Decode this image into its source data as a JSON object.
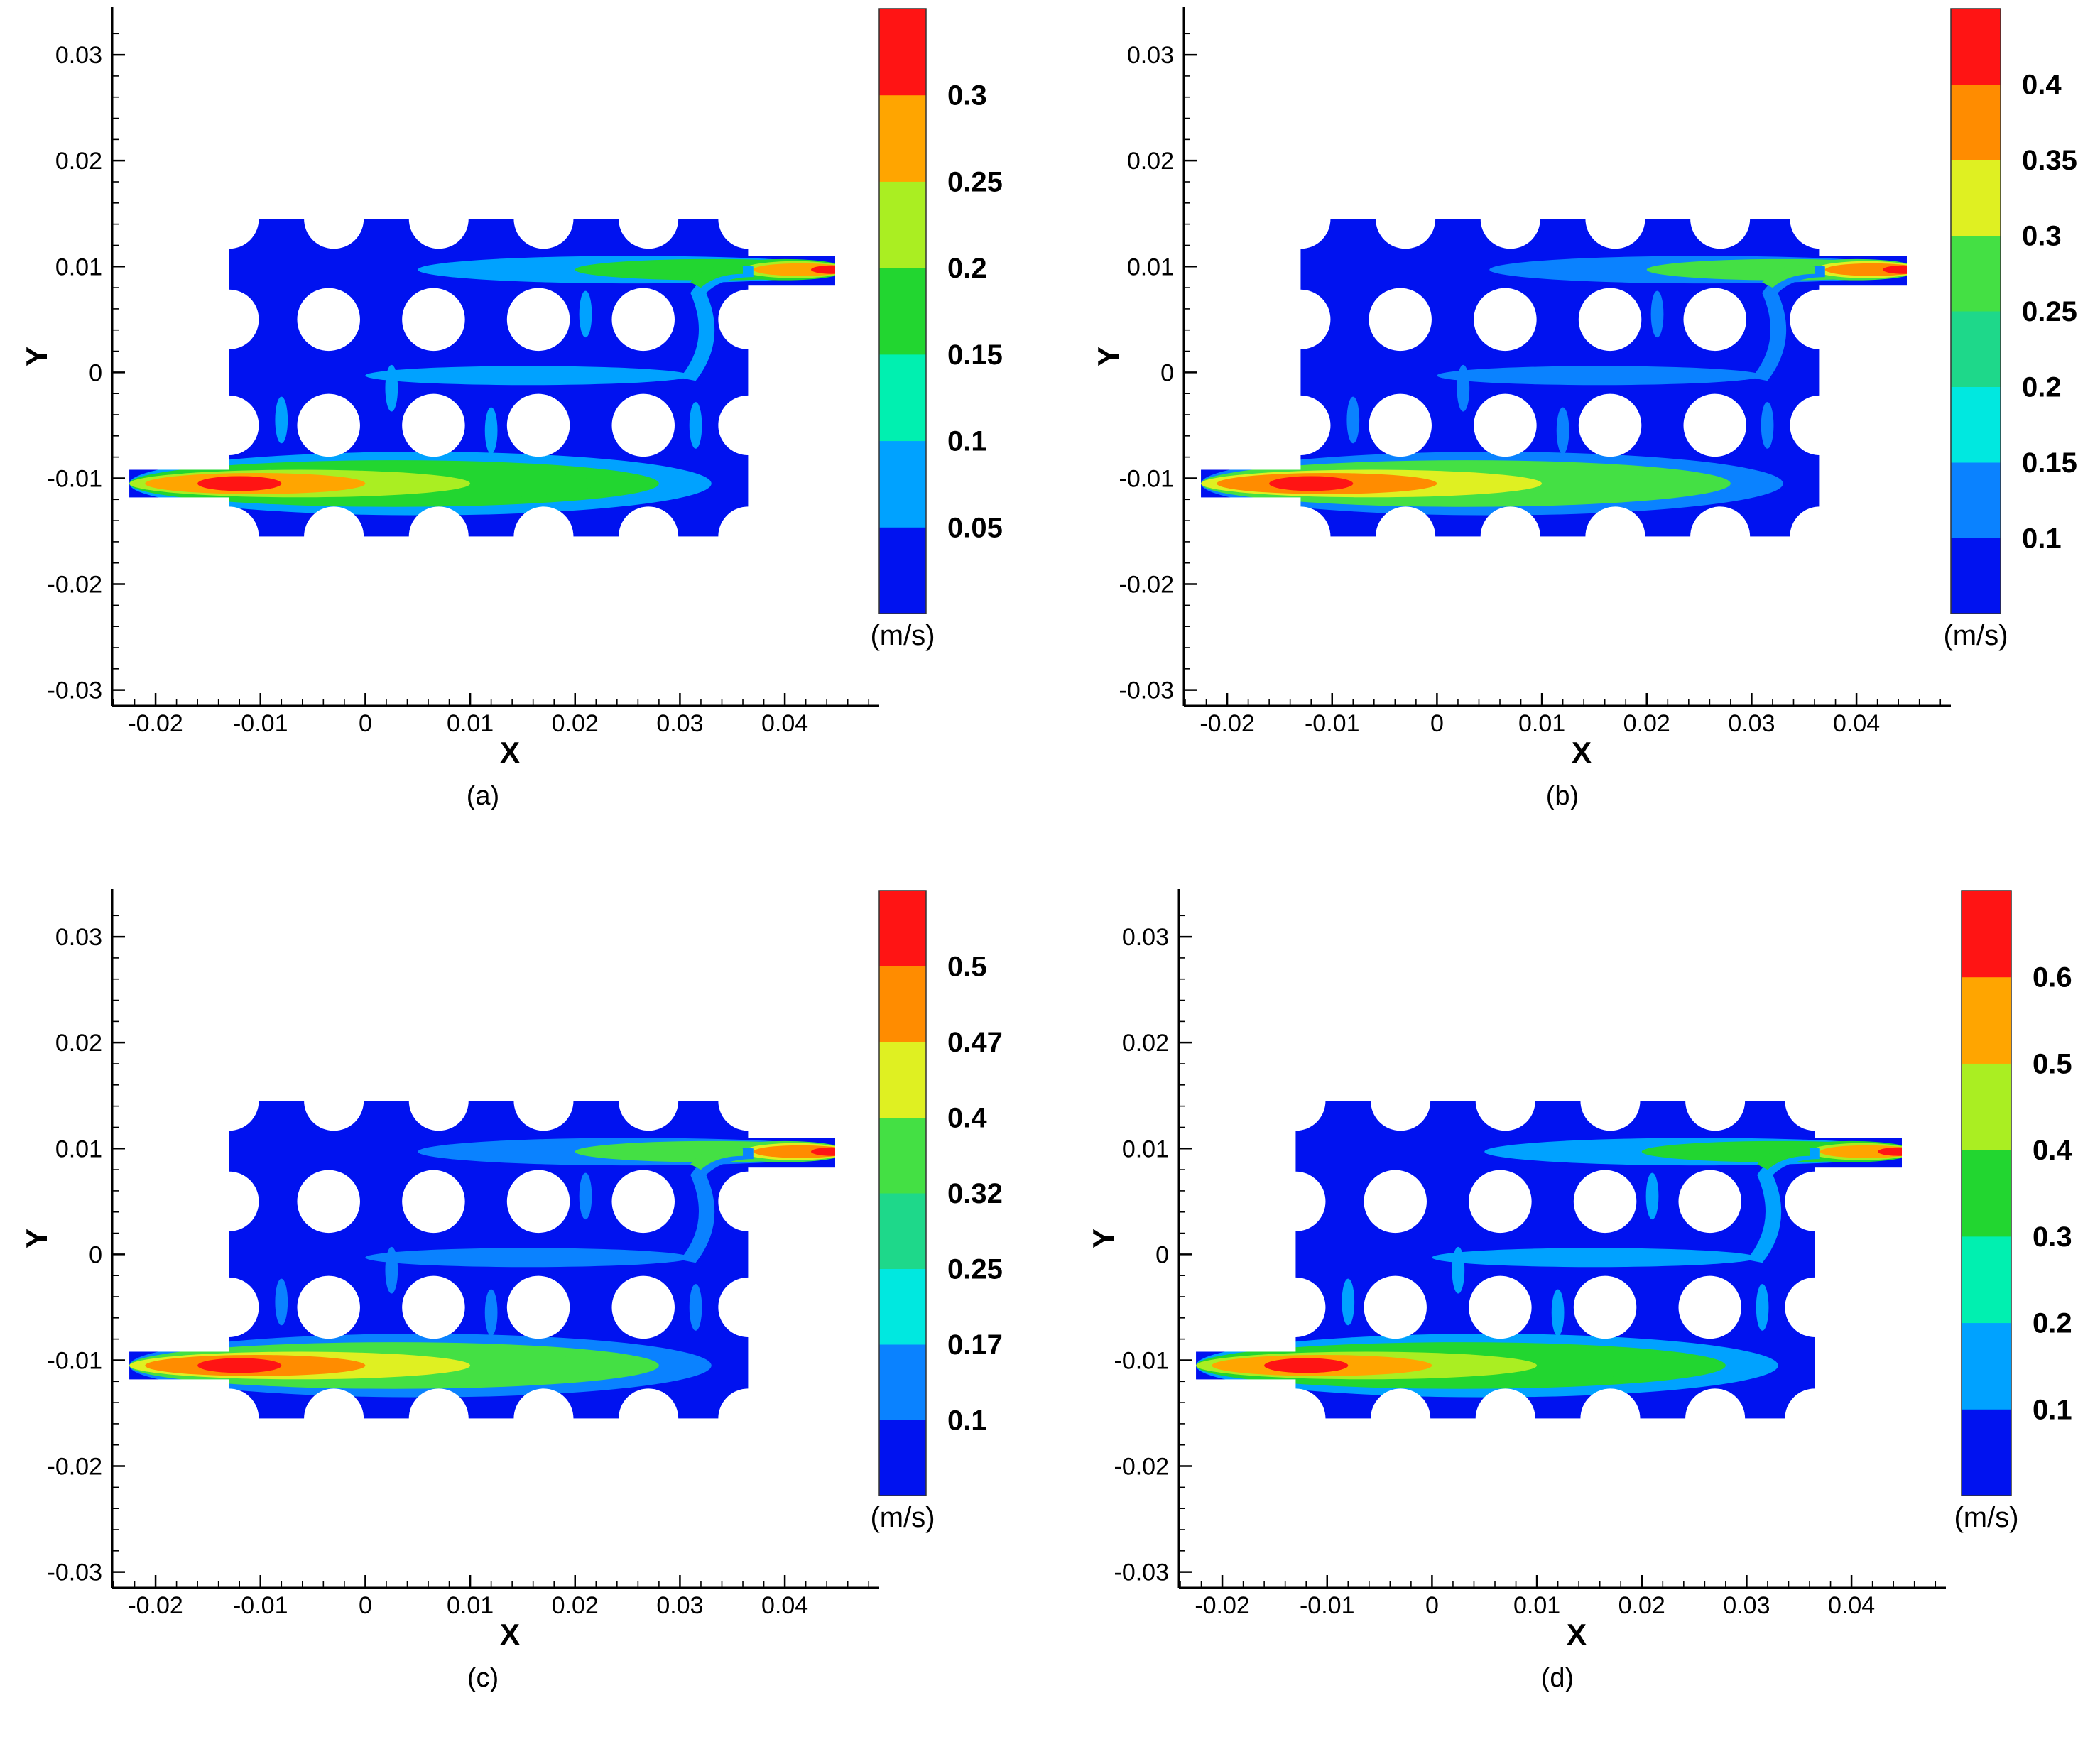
{
  "chart_data": [
    {
      "type": "heatmap",
      "caption": "(a)",
      "xlabel": "X",
      "ylabel": "Y",
      "xlim": [
        -0.024,
        0.049
      ],
      "ylim": [
        -0.0315,
        0.0345
      ],
      "xticks": [
        "-0.02",
        "-0.01",
        "0",
        "0.01",
        "0.02",
        "0.03",
        "0.04"
      ],
      "yticks": [
        "0.03",
        "0.02",
        "0.01",
        "0",
        "-0.01",
        "-0.02",
        "-0.03"
      ],
      "colorbar": {
        "unit": "(m/s)",
        "labels": [
          "0.3",
          "0.25",
          "0.2",
          "0.15",
          "0.1",
          "0.05"
        ],
        "bands": [
          "#0012f0",
          "#00a2ff",
          "#00f0b0",
          "#22d630",
          "#aaee22",
          "#ffa500",
          "#ff1414"
        ]
      }
    },
    {
      "type": "heatmap",
      "caption": "(b)",
      "xlabel": "X",
      "ylabel": "Y",
      "xlim": [
        -0.024,
        0.049
      ],
      "ylim": [
        -0.0315,
        0.0345
      ],
      "xticks": [
        "-0.02",
        "-0.01",
        "0",
        "0.01",
        "0.02",
        "0.03",
        "0.04"
      ],
      "yticks": [
        "0.03",
        "0.02",
        "0.01",
        "0",
        "-0.01",
        "-0.02",
        "-0.03"
      ],
      "colorbar": {
        "unit": "(m/s)",
        "labels": [
          "0.4",
          "0.35",
          "0.3",
          "0.25",
          "0.2",
          "0.15",
          "0.1"
        ],
        "bands": [
          "#0012f0",
          "#0a82ff",
          "#00e8e0",
          "#1ed88a",
          "#44e044",
          "#dff022",
          "#ff8c00",
          "#ff1414"
        ]
      }
    },
    {
      "type": "heatmap",
      "caption": "(c)",
      "xlabel": "X",
      "ylabel": "Y",
      "xlim": [
        -0.024,
        0.049
      ],
      "ylim": [
        -0.0315,
        0.0345
      ],
      "xticks": [
        "-0.02",
        "-0.01",
        "0",
        "0.01",
        "0.02",
        "0.03",
        "0.04"
      ],
      "yticks": [
        "0.03",
        "0.02",
        "0.01",
        "0",
        "-0.01",
        "-0.02",
        "-0.03"
      ],
      "colorbar": {
        "unit": "(m/s)",
        "labels": [
          "0.5",
          "0.47",
          "0.4",
          "0.32",
          "0.25",
          "0.17",
          "0.1"
        ],
        "bands": [
          "#0012f0",
          "#0a82ff",
          "#00e8e0",
          "#1ed88a",
          "#44e044",
          "#dff022",
          "#ff8c00",
          "#ff1414"
        ]
      }
    },
    {
      "type": "heatmap",
      "caption": "(d)",
      "xlabel": "X",
      "ylabel": "Y",
      "xlim": [
        -0.024,
        0.049
      ],
      "ylim": [
        -0.0315,
        0.0345
      ],
      "xticks": [
        "-0.02",
        "-0.01",
        "0",
        "0.01",
        "0.02",
        "0.03",
        "0.04"
      ],
      "yticks": [
        "0.03",
        "0.02",
        "0.01",
        "0",
        "-0.01",
        "-0.02",
        "-0.03"
      ],
      "colorbar": {
        "unit": "(m/s)",
        "labels": [
          "0.6",
          "0.5",
          "0.4",
          "0.3",
          "0.2",
          "0.1"
        ],
        "bands": [
          "#0012f0",
          "#00a2ff",
          "#00f0b0",
          "#22d630",
          "#aaee22",
          "#ffa500",
          "#ff1414"
        ]
      }
    }
  ]
}
